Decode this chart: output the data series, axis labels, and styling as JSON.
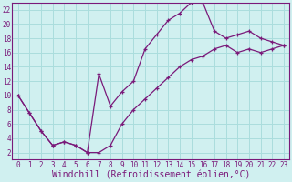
{
  "xlabel": "Windchill (Refroidissement éolien,°C)",
  "bg_color": "#d0f0f0",
  "grid_color": "#aadddd",
  "line_color": "#7a1a7a",
  "xlim": [
    -0.5,
    23.5
  ],
  "ylim": [
    1,
    23
  ],
  "xticks": [
    0,
    1,
    2,
    3,
    4,
    5,
    6,
    7,
    8,
    9,
    10,
    11,
    12,
    13,
    14,
    15,
    16,
    17,
    18,
    19,
    20,
    21,
    22,
    23
  ],
  "yticks": [
    2,
    4,
    6,
    8,
    10,
    12,
    14,
    16,
    18,
    20,
    22
  ],
  "line1_x": [
    0,
    1,
    2,
    3,
    4,
    5,
    6,
    7,
    8,
    9,
    10,
    11,
    12,
    13,
    14,
    15,
    16,
    17,
    18,
    19,
    20,
    21,
    22,
    23
  ],
  "line1_y": [
    10,
    7.5,
    5,
    3,
    3.5,
    3,
    2,
    13,
    8.5,
    10.5,
    12,
    16.5,
    18.5,
    20.5,
    21.5,
    23,
    23,
    19,
    18,
    18.5,
    19,
    18,
    17.5,
    17
  ],
  "line2_x": [
    0,
    1,
    2,
    3,
    4,
    5,
    6,
    7,
    8,
    9,
    10,
    11,
    12,
    13,
    14,
    15,
    16,
    17,
    18,
    19,
    20,
    21,
    22,
    23
  ],
  "line2_y": [
    10,
    7.5,
    5,
    3,
    3.5,
    3,
    2,
    2,
    3,
    6,
    8,
    9.5,
    11,
    12.5,
    14,
    15,
    15.5,
    16.5,
    17,
    16,
    16.5,
    16,
    16.5,
    17
  ],
  "tick_fontsize": 5.5,
  "xlabel_fontsize": 7.0
}
